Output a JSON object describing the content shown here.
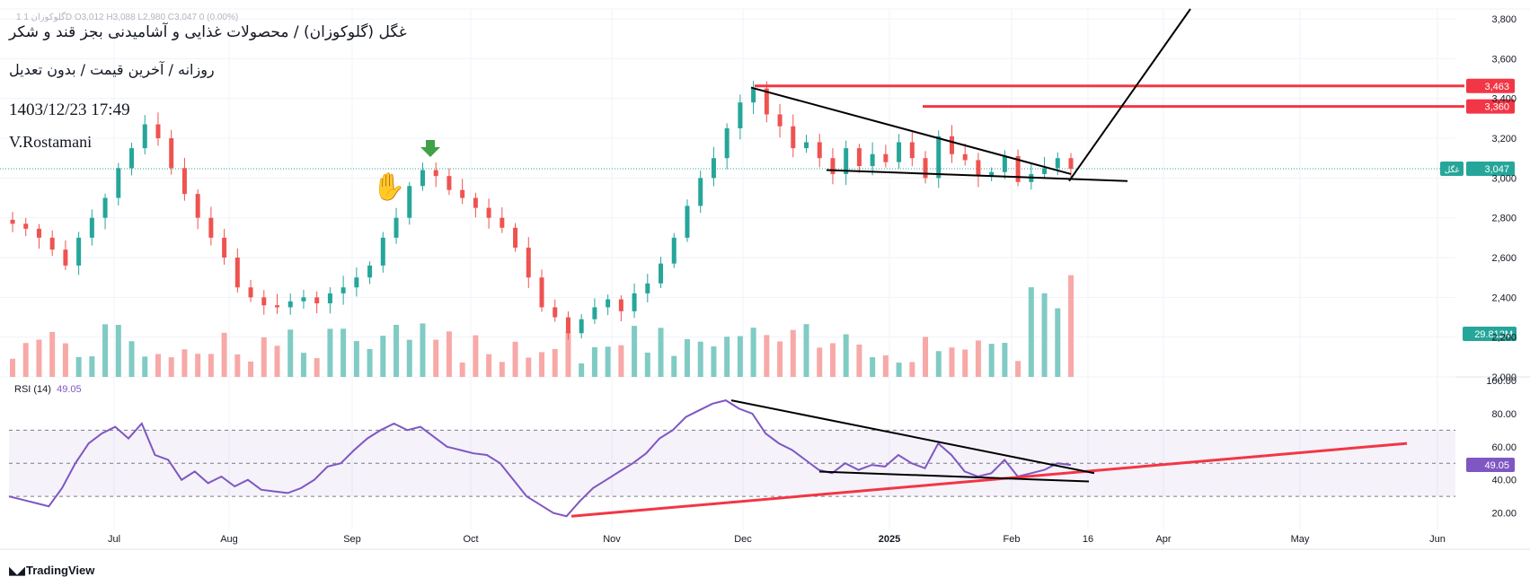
{
  "chart": {
    "ohlc_text": "1  گلوکوزان  1D  O3,012  H3,088  L2,980  C3,047  0  (0.00%)",
    "title": "غگل (گلوکوزان) / محصولات غذایی و آشامیدنی بجز قند و شکر",
    "subtitle": "روزانه / آخرین قیمت / بدون تعدیل",
    "datetime": "1403/12/23 17:49",
    "author": "V.Rostamani",
    "brand": "TradingView",
    "rsi_name": "RSI (14)",
    "rsi_value": "49.05",
    "colors": {
      "up": "#26a69a",
      "down": "#ef5350",
      "up_volume": "#80cbc4",
      "down_volume": "#f7a9a7",
      "rsi_line": "#7e57c2",
      "resistance": "#f23645",
      "trendline": "#000000",
      "grid": "#f0f3fa"
    }
  },
  "chart_data": [
    {
      "type": "candlestick",
      "ylim": [
        2000,
        3850
      ],
      "price_ticks": [
        "2,000",
        "2,200",
        "2,400",
        "2,600",
        "2,800",
        "3,000",
        "3,200",
        "3,400",
        "3,600",
        "3,800"
      ],
      "x_ticks": [
        "Jul",
        "Aug",
        "Sep",
        "Oct",
        "Nov",
        "Dec",
        "2025",
        "Feb",
        "16",
        "Apr",
        "May",
        "Jun"
      ],
      "last_price": {
        "symbol": "غگل",
        "value": "3,047"
      },
      "resistance_levels": [
        {
          "label": "3,463",
          "value": 3463
        },
        {
          "label": "3,360",
          "value": 3360
        }
      ],
      "volume_label": "29.812M",
      "close_path": [
        2770,
        2745,
        2700,
        2640,
        2560,
        2700,
        2800,
        2900,
        3050,
        3150,
        3270,
        3200,
        3050,
        2920,
        2800,
        2700,
        2600,
        2450,
        2400,
        2360,
        2350,
        2380,
        2400,
        2370,
        2420,
        2450,
        2500,
        2560,
        2700,
        2800,
        2960,
        3040,
        3010,
        2940,
        2900,
        2850,
        2800,
        2750,
        2650,
        2500,
        2350,
        2300,
        2220,
        2290,
        2350,
        2390,
        2330,
        2420,
        2470,
        2570,
        2700,
        2860,
        3000,
        3100,
        3250,
        3380,
        3450,
        3320,
        3260,
        3150,
        3180,
        3100,
        3020,
        3150,
        3060,
        3120,
        3080,
        3180,
        3100,
        3000,
        3210,
        3120,
        3090,
        3010,
        3030,
        3110,
        2980,
        3020,
        3050,
        3100,
        3047
      ]
    },
    {
      "type": "line",
      "name": "RSI (14)",
      "ylim": [
        10,
        100
      ],
      "y_ticks": [
        "20.00",
        "40.00",
        "60.00",
        "80.00",
        "100.00"
      ],
      "bands": [
        30,
        50,
        70
      ],
      "current_value": "49.05",
      "values": [
        30,
        28,
        26,
        24,
        35,
        50,
        62,
        68,
        72,
        65,
        74,
        55,
        52,
        40,
        45,
        38,
        42,
        36,
        40,
        34,
        33,
        32,
        35,
        40,
        48,
        50,
        58,
        65,
        70,
        74,
        70,
        72,
        66,
        60,
        58,
        56,
        55,
        50,
        40,
        30,
        25,
        20,
        18,
        27,
        35,
        40,
        45,
        50,
        56,
        65,
        70,
        78,
        82,
        86,
        88,
        83,
        80,
        68,
        62,
        58,
        52,
        46,
        44,
        50,
        46,
        49,
        48,
        55,
        50,
        47,
        62,
        55,
        45,
        42,
        44,
        52,
        42,
        44,
        46,
        50,
        49
      ]
    }
  ]
}
